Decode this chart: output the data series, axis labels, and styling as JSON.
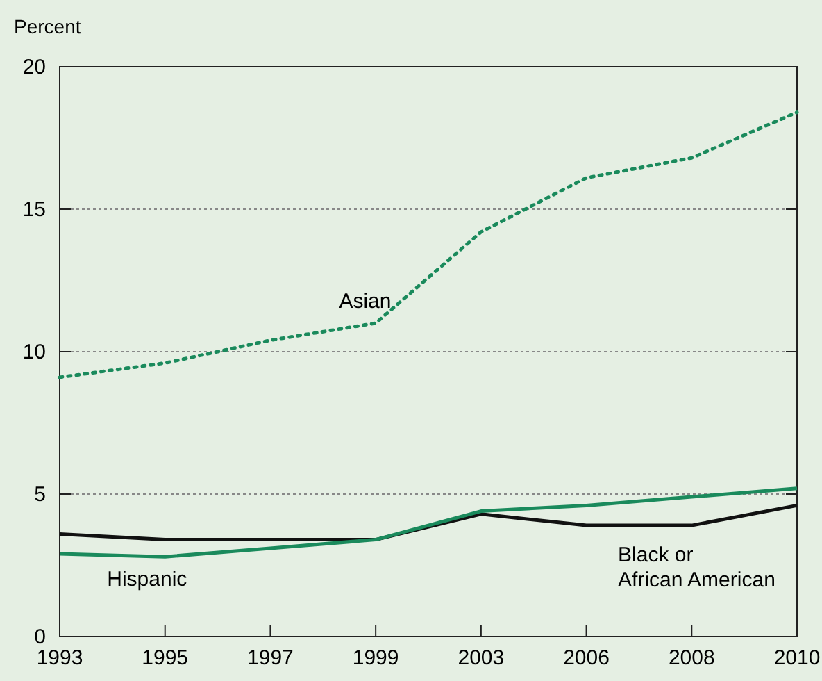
{
  "chart_data": {
    "type": "line",
    "ylabel": "Percent",
    "categories": [
      "1993",
      "1995",
      "1997",
      "1999",
      "2003",
      "2006",
      "2008",
      "2010"
    ],
    "ylim": [
      0,
      20
    ],
    "yticks": [
      0,
      5,
      10,
      15,
      20
    ],
    "grid": "y",
    "series": [
      {
        "name": "Asian",
        "color": "#1a8a5c",
        "line_style": "dotted",
        "values": [
          9.1,
          9.6,
          10.4,
          11.0,
          14.2,
          16.1,
          16.8,
          18.4
        ]
      },
      {
        "name": "Black or\nAfrican American",
        "color": "#111111",
        "line_style": "solid",
        "values": [
          3.6,
          3.4,
          3.4,
          3.4,
          4.3,
          3.9,
          3.9,
          4.6
        ]
      },
      {
        "name": "Hispanic",
        "color": "#1a8a5c",
        "line_style": "solid",
        "values": [
          2.9,
          2.8,
          3.1,
          3.4,
          4.4,
          4.6,
          4.9,
          5.2
        ]
      }
    ]
  }
}
